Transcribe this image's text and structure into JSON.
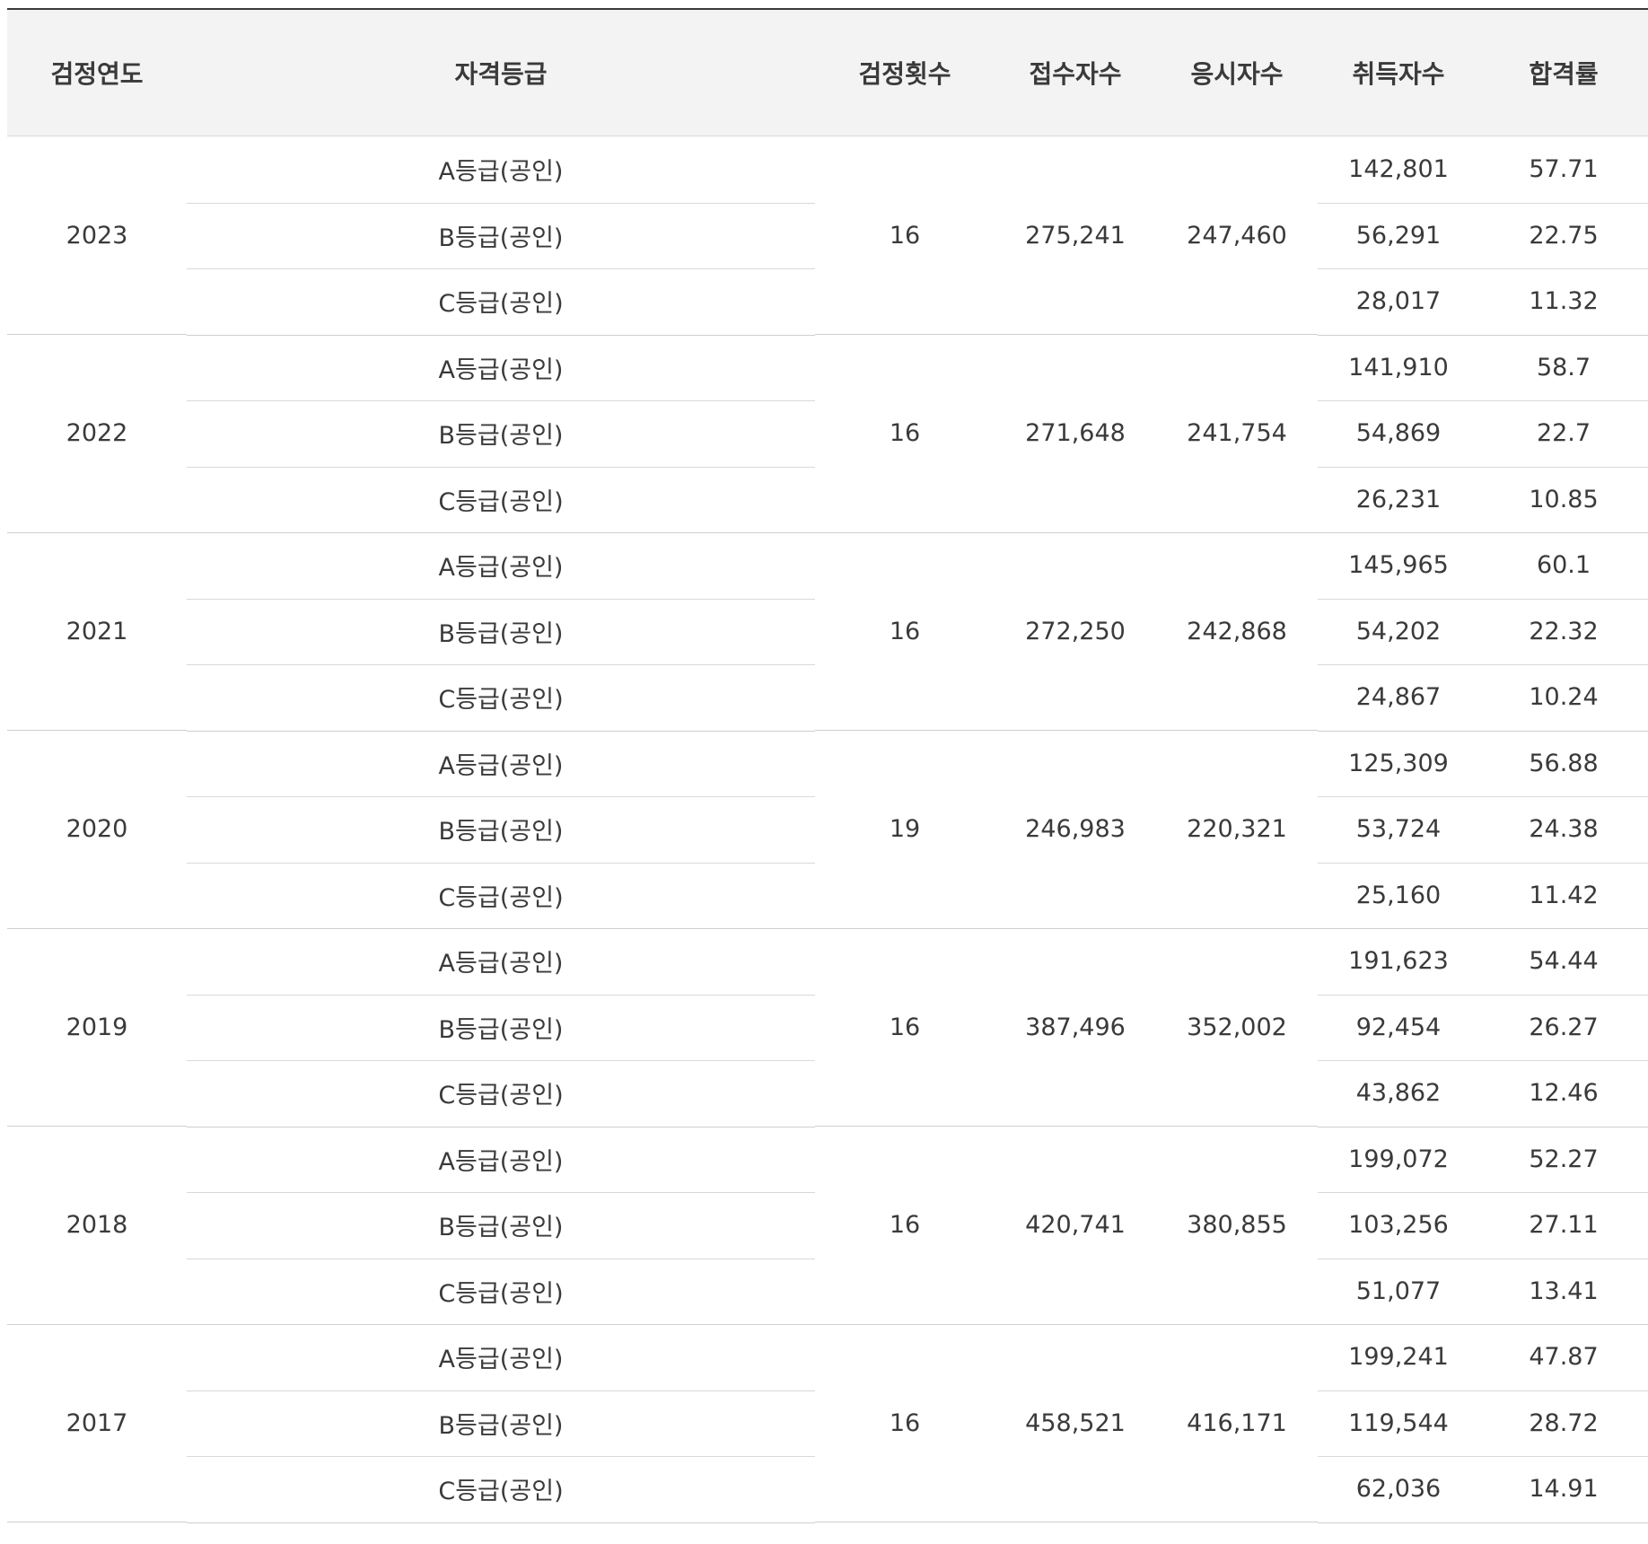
{
  "headers": {
    "year": "검정연도",
    "grade": "자격등급",
    "count": "검정횟수",
    "received": "접수자수",
    "examinees": "응시자수",
    "acquired": "취득자수",
    "pass_rate": "합격률"
  },
  "years": [
    {
      "year": "2023",
      "count": "16",
      "received": "275,241",
      "examinees": "247,460",
      "grades": [
        {
          "grade": "A등급(공인)",
          "acquired": "142,801",
          "rate": "57.71"
        },
        {
          "grade": "B등급(공인)",
          "acquired": "56,291",
          "rate": "22.75"
        },
        {
          "grade": "C등급(공인)",
          "acquired": "28,017",
          "rate": "11.32"
        }
      ]
    },
    {
      "year": "2022",
      "count": "16",
      "received": "271,648",
      "examinees": "241,754",
      "grades": [
        {
          "grade": "A등급(공인)",
          "acquired": "141,910",
          "rate": "58.7"
        },
        {
          "grade": "B등급(공인)",
          "acquired": "54,869",
          "rate": "22.7"
        },
        {
          "grade": "C등급(공인)",
          "acquired": "26,231",
          "rate": "10.85"
        }
      ]
    },
    {
      "year": "2021",
      "count": "16",
      "received": "272,250",
      "examinees": "242,868",
      "grades": [
        {
          "grade": "A등급(공인)",
          "acquired": "145,965",
          "rate": "60.1"
        },
        {
          "grade": "B등급(공인)",
          "acquired": "54,202",
          "rate": "22.32"
        },
        {
          "grade": "C등급(공인)",
          "acquired": "24,867",
          "rate": "10.24"
        }
      ]
    },
    {
      "year": "2020",
      "count": "19",
      "received": "246,983",
      "examinees": "220,321",
      "grades": [
        {
          "grade": "A등급(공인)",
          "acquired": "125,309",
          "rate": "56.88"
        },
        {
          "grade": "B등급(공인)",
          "acquired": "53,724",
          "rate": "24.38"
        },
        {
          "grade": "C등급(공인)",
          "acquired": "25,160",
          "rate": "11.42"
        }
      ]
    },
    {
      "year": "2019",
      "count": "16",
      "received": "387,496",
      "examinees": "352,002",
      "grades": [
        {
          "grade": "A등급(공인)",
          "acquired": "191,623",
          "rate": "54.44"
        },
        {
          "grade": "B등급(공인)",
          "acquired": "92,454",
          "rate": "26.27"
        },
        {
          "grade": "C등급(공인)",
          "acquired": "43,862",
          "rate": "12.46"
        }
      ]
    },
    {
      "year": "2018",
      "count": "16",
      "received": "420,741",
      "examinees": "380,855",
      "grades": [
        {
          "grade": "A등급(공인)",
          "acquired": "199,072",
          "rate": "52.27"
        },
        {
          "grade": "B등급(공인)",
          "acquired": "103,256",
          "rate": "27.11"
        },
        {
          "grade": "C등급(공인)",
          "acquired": "51,077",
          "rate": "13.41"
        }
      ]
    },
    {
      "year": "2017",
      "count": "16",
      "received": "458,521",
      "examinees": "416,171",
      "grades": [
        {
          "grade": "A등급(공인)",
          "acquired": "199,241",
          "rate": "47.87"
        },
        {
          "grade": "B등급(공인)",
          "acquired": "119,544",
          "rate": "28.72"
        },
        {
          "grade": "C등급(공인)",
          "acquired": "62,036",
          "rate": "14.91"
        }
      ]
    }
  ]
}
